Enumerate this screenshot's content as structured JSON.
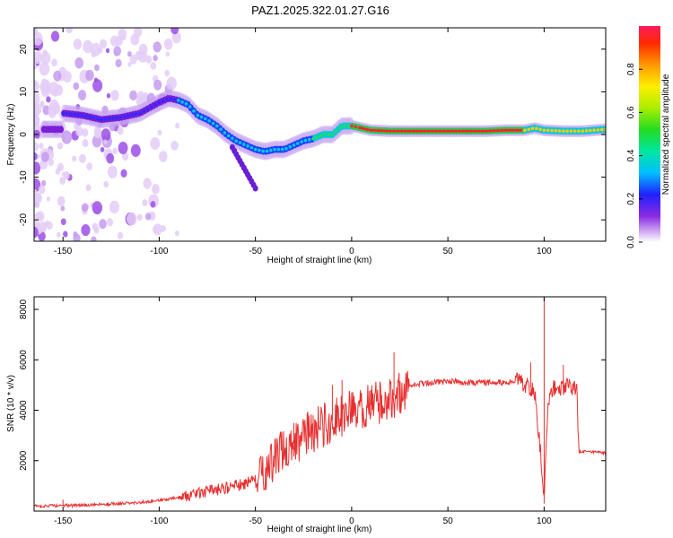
{
  "chart_data": [
    {
      "type": "heatmap",
      "title": "PAZ1.2025.322.01.27.G16",
      "xlabel": "Height of straight line (km)",
      "ylabel": "Frequency (Hz)",
      "xlim": [
        -165,
        132
      ],
      "ylim": [
        -25,
        25
      ],
      "xticks": [
        -150,
        -100,
        -50,
        0,
        50,
        100
      ],
      "yticks": [
        20,
        10,
        0,
        -10,
        -20
      ],
      "ridge": {
        "x": [
          -150,
          -140,
          -130,
          -120,
          -110,
          -100,
          -95,
          -90,
          -85,
          -80,
          -75,
          -70,
          -65,
          -60,
          -55,
          -50,
          -45,
          -40,
          -35,
          -30,
          -25,
          -20,
          -15,
          -10,
          -5,
          0,
          10,
          20,
          30,
          40,
          50,
          60,
          70,
          80,
          90,
          95,
          100,
          110,
          120,
          132
        ],
        "y": [
          5,
          4.5,
          3.5,
          4,
          5,
          7.5,
          8.5,
          8,
          7,
          4.5,
          3.5,
          2,
          0,
          -1.5,
          -2.5,
          -3.5,
          -4,
          -3.5,
          -3.5,
          -2.5,
          -1.5,
          -1,
          0,
          0,
          2,
          2,
          1,
          0.8,
          0.8,
          0.8,
          0.8,
          0.8,
          0.8,
          1,
          1,
          1.5,
          1,
          0.8,
          0.8,
          1.2
        ]
      },
      "colorbar": {
        "label": "Normalized spectral amplitude",
        "ticks": [
          "0.0",
          "0.2",
          "0.4",
          "0.6",
          "0.8"
        ],
        "tick_values": [
          0,
          0.2,
          0.4,
          0.6,
          0.8
        ],
        "range": [
          0,
          1
        ]
      }
    },
    {
      "type": "line",
      "xlabel": "Height of straight line (km)",
      "ylabel": "SNR (10 * v/v)",
      "xlim": [
        -165,
        132
      ],
      "ylim": [
        0,
        8500
      ],
      "xticks": [
        -150,
        -100,
        -50,
        0,
        50,
        100
      ],
      "yticks": [
        2000,
        4000,
        6000,
        8000
      ],
      "series": [
        {
          "name": "SNR",
          "color": "#e83030",
          "x": [
            -165,
            -150,
            -140,
            -130,
            -120,
            -110,
            -100,
            -90,
            -80,
            -70,
            -60,
            -50,
            -45,
            -40,
            -35,
            -30,
            -25,
            -20,
            -15,
            -10,
            -5,
            0,
            5,
            10,
            15,
            20,
            25,
            30,
            35,
            40,
            50,
            60,
            70,
            80,
            85,
            90,
            95,
            98,
            100,
            102,
            105,
            110,
            115,
            117,
            118,
            120,
            125,
            132
          ],
          "values": [
            200,
            220,
            230,
            260,
            300,
            340,
            420,
            550,
            700,
            850,
            1000,
            1200,
            1600,
            2100,
            2400,
            2700,
            3000,
            3200,
            3400,
            3600,
            3800,
            3900,
            4000,
            4200,
            4350,
            4500,
            4700,
            4950,
            5050,
            5100,
            5150,
            5100,
            5100,
            5100,
            5150,
            5000,
            4800,
            2500,
            700,
            4200,
            4900,
            4950,
            4950,
            4900,
            2350,
            2350,
            2350,
            2300
          ],
          "spikes": [
            [
              -150,
              450
            ],
            [
              -62,
              1000
            ],
            [
              -40,
              2600
            ],
            [
              -30,
              3500
            ],
            [
              -20,
              3800
            ],
            [
              -10,
              5000
            ],
            [
              -5,
              5200
            ],
            [
              0,
              4700
            ],
            [
              10,
              4800
            ],
            [
              22,
              6300
            ],
            [
              88,
              5300
            ],
            [
              93,
              5900
            ],
            [
              100,
              8500
            ],
            [
              100,
              300
            ],
            [
              110,
              5800
            ]
          ]
        }
      ]
    }
  ]
}
